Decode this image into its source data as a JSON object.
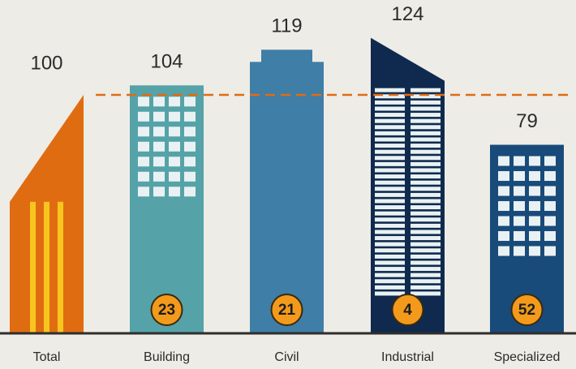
{
  "chart_data": {
    "type": "building-bar",
    "categories": [
      "Total",
      "Building",
      "Civil",
      "Industrial",
      "Specialized"
    ],
    "values": [
      100,
      104,
      119,
      124,
      79
    ],
    "shares": [
      null,
      23,
      21,
      4,
      52
    ],
    "colors": [
      "#e06c12",
      "#55a3a8",
      "#3f7ea6",
      "#0f2a4e",
      "#184a7a"
    ],
    "reference_color": "#e06c12"
  }
}
